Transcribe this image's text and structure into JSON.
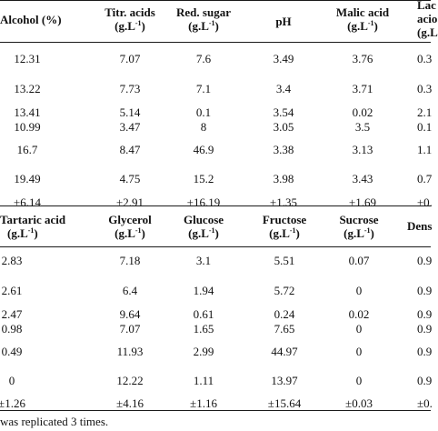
{
  "table1": {
    "headers": [
      {
        "l1": "Alcohol (%)",
        "l2": ""
      },
      {
        "l1": "Titr. acids",
        "l2": "(g.L",
        "sup": "-1",
        "tail": ")"
      },
      {
        "l1": "Red. sugar",
        "l2": "(g.L",
        "sup": "-1",
        "tail": ")"
      },
      {
        "l1": "pH",
        "l2": ""
      },
      {
        "l1": "Malic acid",
        "l2": "(g.L",
        "sup": "-1",
        "tail": ")"
      },
      {
        "l1": "Lac",
        "l2": "acio",
        "l3": "(g.L"
      }
    ],
    "rows": [
      [
        "12.31",
        "7.07",
        "7.6",
        "3.49",
        "3.76",
        "0.3"
      ],
      [
        "13.22",
        "7.73",
        "7.1",
        "3.4",
        "3.71",
        "0.3"
      ],
      [
        "13.41",
        "5.14",
        "0.1",
        "3.54",
        "0.02",
        "2.1"
      ],
      [
        "10.99",
        "3.47",
        "8",
        "3.05",
        "3.5",
        "0.1"
      ],
      [
        "16.7",
        "8.47",
        "46.9",
        "3.38",
        "3.13",
        "1.1"
      ],
      [
        "19.49",
        "4.75",
        "15.2",
        "3.98",
        "3.43",
        "0.7"
      ],
      [
        "±6.14",
        "±2.91",
        "±16.19",
        "±1.35",
        "±1.69",
        "±0."
      ]
    ]
  },
  "table2": {
    "headers": [
      {
        "l1": "Tartaric acid",
        "l2": "(g.L",
        "sup": "-1",
        "tail": ")"
      },
      {
        "l1": "Glycerol",
        "l2": "(g.L",
        "sup": "-1",
        "tail": ")"
      },
      {
        "l1": "Glucose",
        "l2": "(g.L",
        "sup": "-1",
        "tail": ")"
      },
      {
        "l1": "Fructose",
        "l2": "(g.L",
        "sup": "-1",
        "tail": ")"
      },
      {
        "l1": "Sucrose",
        "l2": "(g.L",
        "sup": "-1",
        "tail": ")"
      },
      {
        "l1": "Dens",
        "l2": ""
      }
    ],
    "rows": [
      [
        "2.83",
        "7.18",
        "3.1",
        "5.51",
        "0.07",
        "0.9"
      ],
      [
        "2.61",
        "6.4",
        "1.94",
        "5.72",
        "0",
        "0.9"
      ],
      [
        "2.47",
        "9.64",
        "0.61",
        "0.24",
        "0.02",
        "0.9"
      ],
      [
        "0.98",
        "7.07",
        "1.65",
        "7.65",
        "0",
        "0.9"
      ],
      [
        "0.49",
        "11.93",
        "2.99",
        "44.97",
        "0",
        "0.9"
      ],
      [
        "0",
        "12.22",
        "1.11",
        "13.97",
        "0",
        "0.9"
      ],
      [
        "±1.26",
        "±4.16",
        "±1.16",
        "±15.64",
        "±0.03",
        "±0."
      ]
    ]
  },
  "footnote": "was replicated 3 times."
}
